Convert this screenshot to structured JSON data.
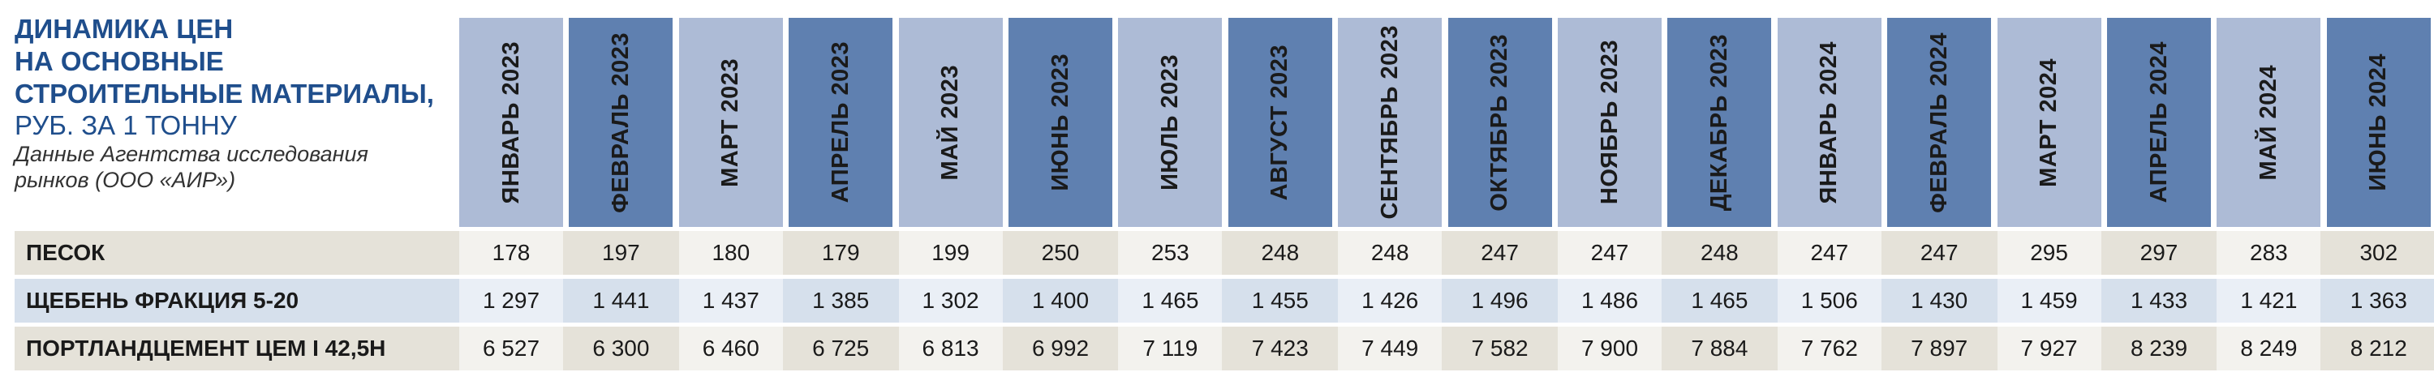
{
  "title": {
    "lines": [
      "Динамика цен",
      "на основные",
      "строительные материалы,"
    ],
    "unit": "руб. за 1 тонну",
    "source_lines": [
      "Данные Агентства исследования",
      "рынков (ООО «АИР»)"
    ]
  },
  "colors": {
    "header_light": "#adbbd6",
    "header_dark": "#5f80b0",
    "row_sand": "#e5e2d9",
    "row_sand_alt": "#f3f2ee",
    "row_blue": "#d6e0ec",
    "row_blue_alt": "#eaeff6",
    "title_blue": "#1f4e8c"
  },
  "chart_data": {
    "type": "table",
    "categories": [
      "Январь 2023",
      "Февраль 2023",
      "Март 2023",
      "Апрель 2023",
      "Май 2023",
      "Июнь 2023",
      "Июль 2023",
      "Август 2023",
      "Сентябрь 2023",
      "Октябрь 2023",
      "Ноябрь 2023",
      "Декабрь 2023",
      "Январь 2024",
      "Февраль 2024",
      "Март 2024",
      "Апрель 2024",
      "Май 2024",
      "Июнь 2024"
    ],
    "series": [
      {
        "name": "Песок",
        "values": [
          178,
          197,
          180,
          179,
          199,
          250,
          253,
          248,
          248,
          247,
          247,
          248,
          247,
          247,
          295,
          297,
          283,
          302
        ],
        "display": [
          "178",
          "197",
          "180",
          "179",
          "199",
          "250",
          "253",
          "248",
          "248",
          "247",
          "247",
          "248",
          "247",
          "247",
          "295",
          "297",
          "283",
          "302"
        ]
      },
      {
        "name": "Щебень фракция 5-20",
        "values": [
          1297,
          1441,
          1437,
          1385,
          1302,
          1400,
          1465,
          1455,
          1426,
          1496,
          1486,
          1465,
          1506,
          1430,
          1459,
          1433,
          1421,
          1363
        ],
        "display": [
          "1 297",
          "1 441",
          "1 437",
          "1 385",
          "1 302",
          "1 400",
          "1 465",
          "1 455",
          "1 426",
          "1 496",
          "1 486",
          "1 465",
          "1 506",
          "1 430",
          "1 459",
          "1 433",
          "1 421",
          "1 363"
        ]
      },
      {
        "name": "Портландцемент ЦЕМ I 42,5Н",
        "values": [
          6527,
          6300,
          6460,
          6725,
          6813,
          6992,
          7119,
          7423,
          7449,
          7582,
          7900,
          7884,
          7762,
          7897,
          7927,
          8239,
          8249,
          8212
        ],
        "display": [
          "6 527",
          "6 300",
          "6 460",
          "6 725",
          "6 813",
          "6 992",
          "7 119",
          "7 423",
          "7 449",
          "7 582",
          "7 900",
          "7 884",
          "7 762",
          "7 897",
          "7 927",
          "8 239",
          "8 249",
          "8 212"
        ]
      }
    ]
  }
}
